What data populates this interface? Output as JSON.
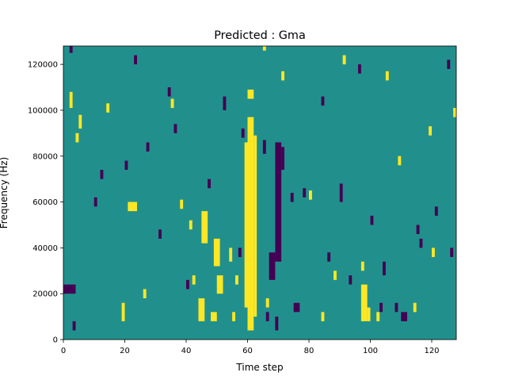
{
  "chart_data": {
    "type": "heatmap",
    "title": "Predicted : Gma",
    "xlabel": "Time step",
    "ylabel": "Frequency (Hz)",
    "xlim": [
      0,
      128
    ],
    "ylim": [
      0,
      128000
    ],
    "x_ticks": [
      0,
      20,
      40,
      60,
      80,
      100,
      120
    ],
    "y_ticks": [
      0,
      20000,
      40000,
      60000,
      80000,
      100000,
      120000
    ],
    "x_tick_labels": [
      "0",
      "20",
      "40",
      "60",
      "80",
      "100",
      "120"
    ],
    "y_tick_labels": [
      "0",
      "20000",
      "40000",
      "60000",
      "80000",
      "100000",
      "120000"
    ],
    "n_time_steps": 128,
    "n_freq_bins": 128,
    "levels": [
      0,
      1,
      2
    ],
    "colormap": {
      "0": "#440154",
      "1": "#21908d",
      "2": "#fde725"
    },
    "background_level": 1,
    "level2_cells": [
      {
        "t": [
          60,
          62
        ],
        "f": [
          4000,
          97000
        ]
      },
      {
        "t": [
          62,
          63
        ],
        "f": [
          10000,
          89000
        ]
      },
      {
        "t": [
          59,
          60
        ],
        "f": [
          14000,
          86000
        ]
      },
      {
        "t": [
          60,
          62
        ],
        "f": [
          105000,
          109000
        ]
      },
      {
        "t": [
          44,
          46
        ],
        "f": [
          8000,
          18000
        ]
      },
      {
        "t": [
          45,
          47
        ],
        "f": [
          42000,
          56000
        ]
      },
      {
        "t": [
          49,
          51
        ],
        "f": [
          32000,
          44000
        ]
      },
      {
        "t": [
          50,
          52
        ],
        "f": [
          20000,
          28000
        ]
      },
      {
        "t": [
          48,
          50
        ],
        "f": [
          8000,
          12000
        ]
      },
      {
        "t": [
          97,
          99
        ],
        "f": [
          8000,
          24000
        ]
      },
      {
        "t": [
          99,
          100
        ],
        "f": [
          8000,
          14000
        ]
      },
      {
        "t": [
          21,
          24
        ],
        "f": [
          56000,
          60000
        ]
      },
      {
        "t": [
          19,
          20
        ],
        "f": [
          8000,
          16000
        ]
      },
      {
        "t": [
          2,
          3
        ],
        "f": [
          101000,
          108000
        ]
      },
      {
        "t": [
          4,
          5
        ],
        "f": [
          86000,
          90000
        ]
      },
      {
        "t": [
          5,
          6
        ],
        "f": [
          92000,
          98000
        ]
      },
      {
        "t": [
          42,
          43
        ],
        "f": [
          24000,
          28000
        ]
      },
      {
        "t": [
          54,
          55
        ],
        "f": [
          34000,
          40000
        ]
      },
      {
        "t": [
          56,
          57
        ],
        "f": [
          24000,
          28000
        ]
      },
      {
        "t": [
          97,
          98
        ],
        "f": [
          30000,
          34000
        ]
      },
      {
        "t": [
          102,
          103
        ],
        "f": [
          8000,
          12000
        ]
      },
      {
        "t": [
          26,
          27
        ],
        "f": [
          18000,
          22000
        ]
      },
      {
        "t": [
          65,
          66
        ],
        "f": [
          126000,
          128000
        ]
      },
      {
        "t": [
          71,
          72
        ],
        "f": [
          113000,
          117000
        ]
      },
      {
        "t": [
          91,
          92
        ],
        "f": [
          120000,
          124000
        ]
      },
      {
        "t": [
          105,
          106
        ],
        "f": [
          113000,
          117000
        ]
      },
      {
        "t": [
          109,
          110
        ],
        "f": [
          76000,
          80000
        ]
      },
      {
        "t": [
          119,
          120
        ],
        "f": [
          89000,
          93000
        ]
      },
      {
        "t": [
          127,
          128
        ],
        "f": [
          97000,
          101000
        ]
      },
      {
        "t": [
          14,
          15
        ],
        "f": [
          99000,
          103000
        ]
      },
      {
        "t": [
          35,
          36
        ],
        "f": [
          101000,
          105000
        ]
      },
      {
        "t": [
          38,
          39
        ],
        "f": [
          57000,
          61000
        ]
      },
      {
        "t": [
          41,
          42
        ],
        "f": [
          48000,
          52000
        ]
      },
      {
        "t": [
          55,
          56
        ],
        "f": [
          8000,
          12000
        ]
      },
      {
        "t": [
          66,
          67
        ],
        "f": [
          14000,
          18000
        ]
      },
      {
        "t": [
          80,
          81
        ],
        "f": [
          61000,
          65000
        ]
      },
      {
        "t": [
          84,
          85
        ],
        "f": [
          8000,
          12000
        ]
      },
      {
        "t": [
          88,
          89
        ],
        "f": [
          26000,
          30000
        ]
      },
      {
        "t": [
          114,
          115
        ],
        "f": [
          12000,
          16000
        ]
      },
      {
        "t": [
          120,
          121
        ],
        "f": [
          36000,
          40000
        ]
      }
    ],
    "level0_cells": [
      {
        "t": [
          69,
          71
        ],
        "f": [
          34000,
          86000
        ]
      },
      {
        "t": [
          67,
          69
        ],
        "f": [
          26000,
          38000
        ]
      },
      {
        "t": [
          65,
          66
        ],
        "f": [
          81000,
          87000
        ]
      },
      {
        "t": [
          71,
          72
        ],
        "f": [
          74000,
          84000
        ]
      },
      {
        "t": [
          0,
          4
        ],
        "f": [
          20000,
          24000
        ]
      },
      {
        "t": [
          110,
          112
        ],
        "f": [
          8000,
          12000
        ]
      },
      {
        "t": [
          103,
          104
        ],
        "f": [
          12000,
          16000
        ]
      },
      {
        "t": [
          75,
          77
        ],
        "f": [
          12000,
          16000
        ]
      },
      {
        "t": [
          104,
          105
        ],
        "f": [
          28000,
          34000
        ]
      },
      {
        "t": [
          66,
          67
        ],
        "f": [
          8000,
          12000
        ]
      },
      {
        "t": [
          69,
          70
        ],
        "f": [
          4000,
          10000
        ]
      },
      {
        "t": [
          86,
          87
        ],
        "f": [
          34000,
          38000
        ]
      },
      {
        "t": [
          90,
          91
        ],
        "f": [
          60000,
          68000
        ]
      },
      {
        "t": [
          93,
          94
        ],
        "f": [
          24000,
          28000
        ]
      },
      {
        "t": [
          23,
          24
        ],
        "f": [
          120000,
          124000
        ]
      },
      {
        "t": [
          36,
          37
        ],
        "f": [
          90000,
          94000
        ]
      },
      {
        "t": [
          52,
          53
        ],
        "f": [
          100000,
          106000
        ]
      },
      {
        "t": [
          57,
          58
        ],
        "f": [
          36000,
          40000
        ]
      },
      {
        "t": [
          74,
          75
        ],
        "f": [
          60000,
          64000
        ]
      },
      {
        "t": [
          78,
          79
        ],
        "f": [
          62000,
          66000
        ]
      },
      {
        "t": [
          100,
          101
        ],
        "f": [
          50000,
          54000
        ]
      },
      {
        "t": [
          115,
          116
        ],
        "f": [
          46000,
          50000
        ]
      },
      {
        "t": [
          121,
          122
        ],
        "f": [
          54000,
          58000
        ]
      },
      {
        "t": [
          126,
          127
        ],
        "f": [
          36000,
          40000
        ]
      },
      {
        "t": [
          3,
          4
        ],
        "f": [
          4000,
          8000
        ]
      },
      {
        "t": [
          12,
          13
        ],
        "f": [
          70000,
          74000
        ]
      },
      {
        "t": [
          20,
          21
        ],
        "f": [
          74000,
          78000
        ]
      },
      {
        "t": [
          27,
          28
        ],
        "f": [
          82000,
          86000
        ]
      },
      {
        "t": [
          34,
          35
        ],
        "f": [
          106000,
          110000
        ]
      },
      {
        "t": [
          47,
          48
        ],
        "f": [
          66000,
          70000
        ]
      },
      {
        "t": [
          58,
          59
        ],
        "f": [
          88000,
          92000
        ]
      },
      {
        "t": [
          84,
          85
        ],
        "f": [
          102000,
          106000
        ]
      },
      {
        "t": [
          96,
          97
        ],
        "f": [
          116000,
          120000
        ]
      },
      {
        "t": [
          108,
          109
        ],
        "f": [
          12000,
          16000
        ]
      },
      {
        "t": [
          116,
          117
        ],
        "f": [
          40000,
          44000
        ]
      },
      {
        "t": [
          125,
          126
        ],
        "f": [
          118000,
          122000
        ]
      },
      {
        "t": [
          2,
          3
        ],
        "f": [
          125000,
          128000
        ]
      },
      {
        "t": [
          10,
          11
        ],
        "f": [
          58000,
          62000
        ]
      },
      {
        "t": [
          31,
          32
        ],
        "f": [
          44000,
          48000
        ]
      },
      {
        "t": [
          40,
          41
        ],
        "f": [
          22000,
          26000
        ]
      }
    ]
  }
}
